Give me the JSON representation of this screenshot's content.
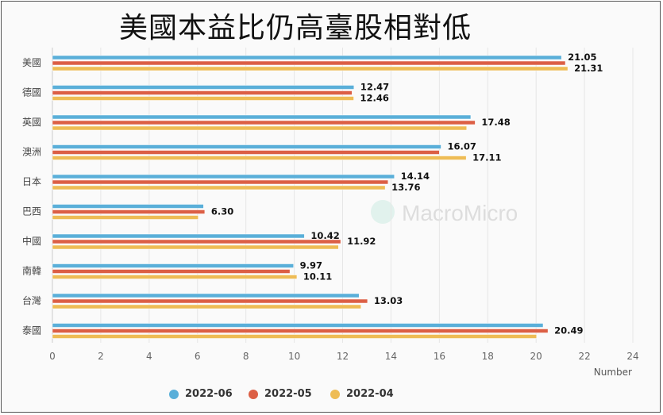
{
  "title": "美國本益比仍高臺股相對低",
  "watermark": "MacroMicro",
  "chart_data": {
    "type": "bar",
    "orientation": "horizontal",
    "title": "美國本益比仍高臺股相對低",
    "categories": [
      "美國",
      "德國",
      "英國",
      "澳洲",
      "日本",
      "巴西",
      "中國",
      "南韓",
      "台灣",
      "泰國"
    ],
    "series": [
      {
        "name": "2022-06",
        "color": "#5aafd9",
        "values": [
          21.05,
          12.47,
          17.3,
          16.07,
          14.14,
          6.25,
          10.42,
          9.97,
          12.68,
          20.29
        ],
        "labels": [
          "21.05",
          "12.47",
          "",
          "16.07",
          "14.14",
          "",
          "10.42",
          "9.97",
          "",
          ""
        ]
      },
      {
        "name": "2022-05",
        "color": "#dc5f45",
        "values": [
          21.21,
          12.39,
          17.48,
          16.0,
          13.88,
          6.3,
          11.92,
          9.82,
          13.03,
          20.49
        ],
        "labels": [
          "",
          "",
          "17.48",
          "",
          "",
          "6.30",
          "11.92",
          "",
          "13.03",
          "20.49"
        ]
      },
      {
        "name": "2022-04",
        "color": "#eebc55",
        "values": [
          21.31,
          12.46,
          17.13,
          17.11,
          13.76,
          6.03,
          11.83,
          10.11,
          12.76,
          20.02
        ],
        "labels": [
          "21.31",
          "12.46",
          "",
          "17.11",
          "13.76",
          "",
          "",
          "10.11",
          "",
          ""
        ]
      }
    ],
    "xlabel": "Number",
    "xlim": [
      0,
      24
    ],
    "xticks": [
      "0",
      "2",
      "4",
      "6",
      "8",
      "10",
      "12",
      "14",
      "16",
      "18",
      "20",
      "22",
      "24"
    ],
    "grid": true,
    "legend": "bottom"
  }
}
